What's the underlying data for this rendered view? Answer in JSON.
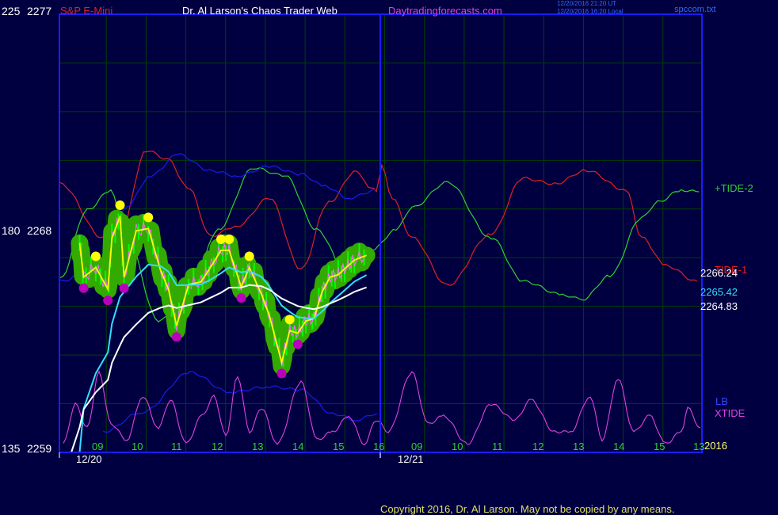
{
  "header": {
    "left_scale_top": "225",
    "price_top": "2277",
    "instrument": "S&P E-Mini",
    "title": "Dr. Al Larson's Chaos Trader Web",
    "site": "Daytradingforecasts.com",
    "timestamp_line1": "12/20/2016 21:20 UT",
    "timestamp_line2": "12/20/2016 16:20 Local",
    "filename": "spccom.txt"
  },
  "axis": {
    "left_mid": "180",
    "price_mid": "2268",
    "left_bottom": "135",
    "price_bottom": "2259",
    "year": "2016",
    "date1": "12/20",
    "date2": "12/21",
    "hours": [
      "09",
      "10",
      "11",
      "12",
      "13",
      "14",
      "15",
      "16",
      "09",
      "10",
      "11",
      "12",
      "13",
      "14",
      "15",
      "13"
    ]
  },
  "labels": {
    "tide2": "+TIDE-2",
    "tide1": "TIDE-1",
    "lb": "LB",
    "xtide": "XTIDE",
    "val1": "2266.24",
    "val2": "2265.42",
    "val3": "2264.83"
  },
  "footer": {
    "copyright": "Copyright 2016, Dr. Al Larson. May not be copied by any means."
  },
  "colors": {
    "background": "#000040",
    "frame": "#1c1cff",
    "grid": "#004000",
    "price": "#00cc00",
    "halo": "#33aa00",
    "highs": "#ffff00",
    "lows": "#bb00bb",
    "tide1": "#e02020",
    "tide2": "#30d030",
    "lb": "#1a1aee",
    "xtide": "#e040e0",
    "ma_fast": "#ffff00",
    "ma_mid": "#33ddff",
    "ma_slow": "#ffffff"
  },
  "chart_data": {
    "type": "line",
    "title": "S&P E-Mini",
    "ylim": [
      2259,
      2277
    ],
    "y_scale_alt": [
      135,
      225
    ],
    "x_sessions": [
      "12/20",
      "12/21"
    ],
    "x_hours": [
      "09",
      "10",
      "11",
      "12",
      "13",
      "14",
      "15",
      "16",
      "09",
      "10",
      "11",
      "12",
      "13",
      "14",
      "15",
      "13"
    ],
    "series": [
      {
        "name": "S&P E-Mini",
        "x": [
          0.5,
          0.6,
          0.9,
          1.2,
          1.3,
          1.5,
          1.6,
          1.9,
          2.2,
          2.5,
          2.7,
          2.9,
          3.2,
          3.5,
          3.7,
          4.0,
          4.2,
          4.5,
          4.7,
          5.0,
          5.2,
          5.5,
          5.7,
          5.9,
          6.1,
          6.3,
          6.5,
          6.7,
          6.9,
          7.1,
          7.3,
          7.6
        ],
        "y": [
          2267.6,
          2266.2,
          2266.6,
          2265.7,
          2267.8,
          2268.7,
          2266.2,
          2268.1,
          2268.2,
          2266.5,
          2265.7,
          2264.2,
          2265.9,
          2266.0,
          2266.5,
          2267.3,
          2267.3,
          2265.8,
          2266.6,
          2265.5,
          2264.6,
          2262.7,
          2264.0,
          2263.9,
          2264.4,
          2264.5,
          2265.6,
          2266.2,
          2266.3,
          2266.6,
          2266.9,
          2267.1
        ]
      },
      {
        "name": "TIDE-1",
        "value": 2266.24
      },
      {
        "name": "+TIDE-2"
      },
      {
        "name": "LB"
      },
      {
        "name": "XTIDE"
      },
      {
        "value": 2265.42
      },
      {
        "value": 2264.83
      }
    ]
  }
}
